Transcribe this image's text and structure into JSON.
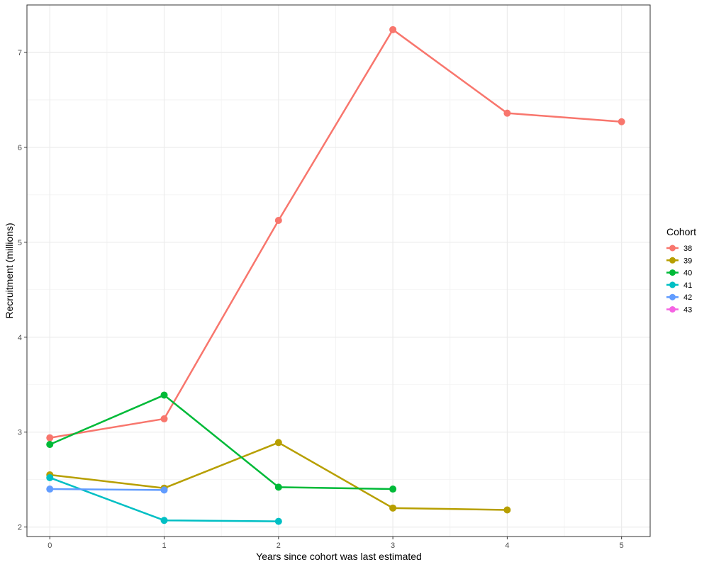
{
  "chart_data": {
    "type": "line",
    "xlabel": "Years since cohort was last estimated",
    "ylabel": "Recruitment (millions)",
    "xlim": [
      -0.2,
      5.25
    ],
    "ylim": [
      1.9,
      7.5
    ],
    "x_ticks": [
      0,
      1,
      2,
      3,
      4,
      5
    ],
    "y_ticks": [
      2,
      3,
      4,
      5,
      6,
      7
    ],
    "grid": true,
    "legend_title": "Cohort",
    "legend_position": "right",
    "series": [
      {
        "name": "38",
        "color": "#F8766D",
        "x": [
          0,
          1,
          2,
          3,
          4,
          5
        ],
        "y": [
          2.94,
          3.14,
          5.23,
          7.24,
          6.36,
          6.27
        ]
      },
      {
        "name": "39",
        "color": "#B79F00",
        "x": [
          0,
          1,
          2,
          3,
          4
        ],
        "y": [
          2.55,
          2.41,
          2.89,
          2.2,
          2.18
        ]
      },
      {
        "name": "40",
        "color": "#00BA38",
        "x": [
          0,
          1,
          2,
          3
        ],
        "y": [
          2.87,
          3.39,
          2.42,
          2.4
        ]
      },
      {
        "name": "41",
        "color": "#00BFC4",
        "x": [
          0,
          1,
          2
        ],
        "y": [
          2.52,
          2.07,
          2.06
        ]
      },
      {
        "name": "42",
        "color": "#619CFF",
        "x": [
          0,
          1
        ],
        "y": [
          2.4,
          2.39
        ]
      },
      {
        "name": "43",
        "color": "#F564E3",
        "x": [],
        "y": []
      }
    ]
  }
}
